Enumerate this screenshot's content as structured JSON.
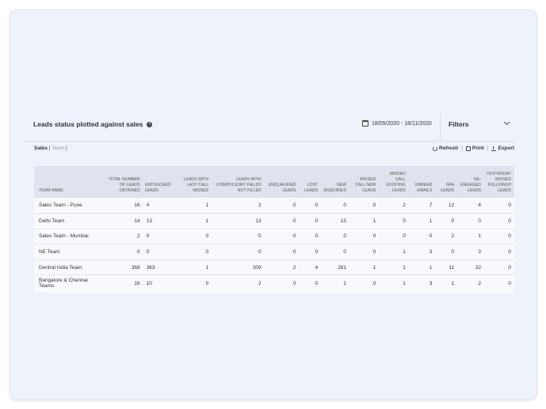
{
  "header": {
    "title": "Leads status plotted against sales",
    "date_range": "18/05/2020 - 18/11/2020",
    "filters_label": "Filters"
  },
  "tabs": {
    "active": "Sales",
    "separator": "|",
    "inactive": "Team",
    "trailing": "|"
  },
  "actions": {
    "refresh": "Refresh",
    "print": "Print",
    "export": "Export",
    "separator": "|"
  },
  "table": {
    "columns": [
      "TEAM NAME",
      "TOTAL NUMBER OF LEADS OBTAINED",
      "UNTOUCHED LEADS",
      "LEADS WITH LAST CALL MISSED",
      "LEADS WITH COMPULSORY FIELDS NOT FILLED",
      "UNQUALIFIED LEADS",
      "LOST LEADS",
      "NEW ENQUIRIES",
      "MISSED CALL NEW LEADS",
      "MISSED CALL EXISTING LEADS",
      "UNREAD EMAILS",
      "NFA LEADS",
      "RE-ENGAGED LEADS",
      "YESTERDAY MISSED FOLLOWUP LEADS"
    ],
    "rows": [
      [
        "Sales Team - Pune",
        "16",
        "4",
        "1",
        "2",
        "0",
        "0",
        "0",
        "0",
        "2",
        "7",
        "12",
        "4",
        "0"
      ],
      [
        "Delhi Team",
        "14",
        "13",
        "1",
        "13",
        "0",
        "0",
        "13",
        "1",
        "0",
        "1",
        "0",
        "0",
        "0"
      ],
      [
        "Sales Team - Mumbai",
        "2",
        "0",
        "0",
        "0",
        "0",
        "0",
        "0",
        "0",
        "0",
        "0",
        "2",
        "1",
        "0"
      ],
      [
        "NE Team",
        "0",
        "0",
        "0",
        "0",
        "0",
        "0",
        "0",
        "0",
        "1",
        "3",
        "0",
        "3",
        "0"
      ],
      [
        "Dentral India Team",
        "368",
        "363",
        "1",
        "309",
        "2",
        "4",
        "281",
        "1",
        "1",
        "1",
        "11",
        "32",
        "0"
      ],
      [
        "Bangalore & Chennai Teams",
        "16",
        "10",
        "0",
        "2",
        "0",
        "0",
        "1",
        "0",
        "1",
        "3",
        "1",
        "2",
        "0"
      ]
    ]
  },
  "icons": [
    "info-icon",
    "calendar-icon",
    "chevron-down-icon",
    "refresh-icon",
    "print-icon",
    "export-icon"
  ]
}
